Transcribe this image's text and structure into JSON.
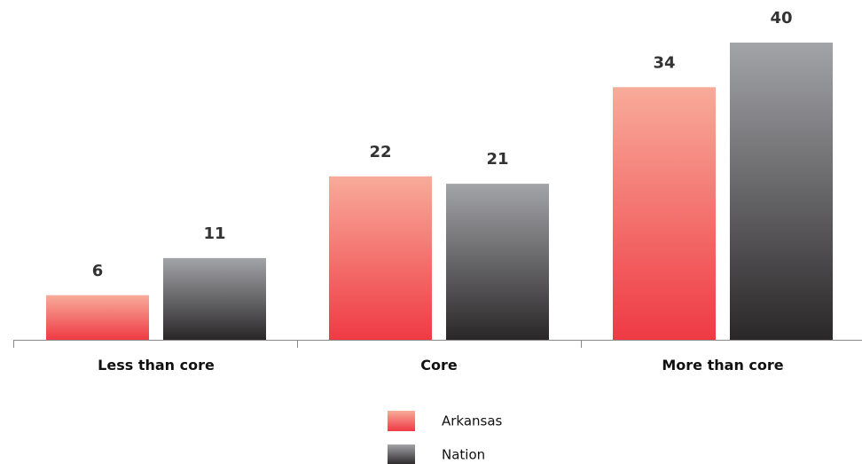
{
  "chart_data": {
    "type": "bar",
    "title": "",
    "xlabel": "",
    "ylabel": "",
    "categories": [
      "Less than core",
      "Core",
      "More than core"
    ],
    "series": [
      {
        "name": "Arkansas",
        "values": [
          6,
          22,
          34
        ],
        "color_top": "#f8ab9a",
        "color_bottom": "#ef3a44"
      },
      {
        "name": "Nation",
        "values": [
          11,
          21,
          40
        ],
        "color_top": "#a3a4a8",
        "color_bottom": "#2a2728"
      }
    ],
    "ylim": [
      0,
      40
    ],
    "grid": false,
    "legend_position": "bottom-center",
    "data_labels": true
  }
}
